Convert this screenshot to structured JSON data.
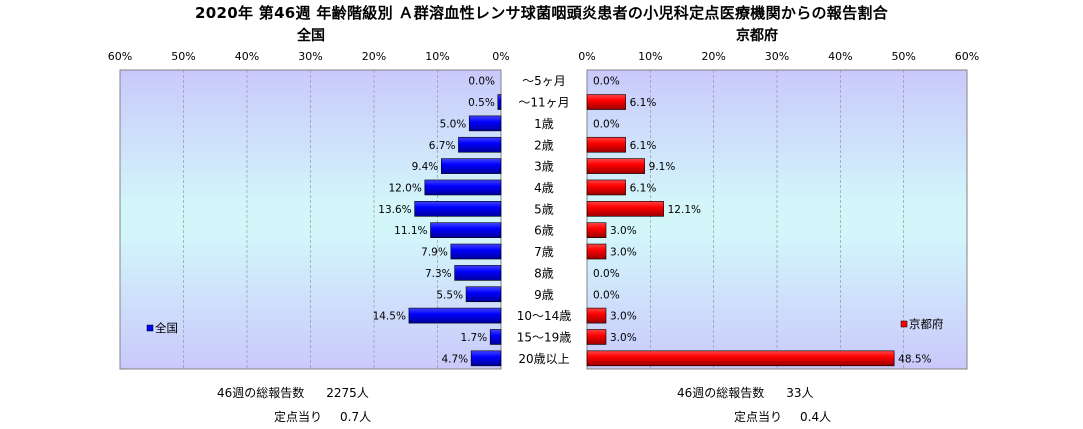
{
  "title": "2020年 第46週 年齢階級別 Ａ群溶血性レンサ球菌咽頭炎患者の小児科定点医療機関からの報告割合",
  "chart_data": {
    "type": "bar",
    "orientation": "horizontal",
    "layout": "butterfly",
    "categories": [
      "～5ヶ月",
      "～11ヶ月",
      "1歳",
      "2歳",
      "3歳",
      "4歳",
      "5歳",
      "6歳",
      "7歳",
      "8歳",
      "9歳",
      "10～14歳",
      "15～19歳",
      "20歳以上"
    ],
    "xlim": [
      0,
      60
    ],
    "ticks": [
      "0%",
      "10%",
      "20%",
      "30%",
      "40%",
      "50%",
      "60%"
    ],
    "grid": true,
    "series": [
      {
        "name": "全国",
        "side": "left",
        "color": "#0000ff",
        "values": [
          0.0,
          0.5,
          5.0,
          6.7,
          9.4,
          12.0,
          13.6,
          11.1,
          7.9,
          7.3,
          5.5,
          14.5,
          1.7,
          4.7
        ],
        "labels": [
          "0.0%",
          "0.5%",
          "5.0%",
          "6.7%",
          "9.4%",
          "12.0%",
          "13.6%",
          "11.1%",
          "7.9%",
          "7.3%",
          "5.5%",
          "14.5%",
          "1.7%",
          "4.7%"
        ],
        "legend": "bottom-left"
      },
      {
        "name": "京都府",
        "side": "right",
        "color": "#ff0000",
        "values": [
          0.0,
          6.1,
          0.0,
          6.1,
          9.1,
          6.1,
          12.1,
          3.0,
          3.0,
          0.0,
          0.0,
          3.0,
          3.0,
          48.5
        ],
        "labels": [
          "0.0%",
          "6.1%",
          "0.0%",
          "6.1%",
          "9.1%",
          "6.1%",
          "12.1%",
          "3.0%",
          "3.0%",
          "0.0%",
          "0.0%",
          "3.0%",
          "3.0%",
          "48.5%"
        ],
        "legend": "bottom-right"
      }
    ]
  },
  "left_region": "全国",
  "right_region": "京都府",
  "left_stats": {
    "total_label": "46週の総報告数",
    "total_value": "2275人",
    "per_label": "定点当り",
    "per_value": "0.7人"
  },
  "right_stats": {
    "total_label": "46週の総報告数",
    "total_value": "33人",
    "per_label": "定点当り",
    "per_value": "0.4人"
  }
}
